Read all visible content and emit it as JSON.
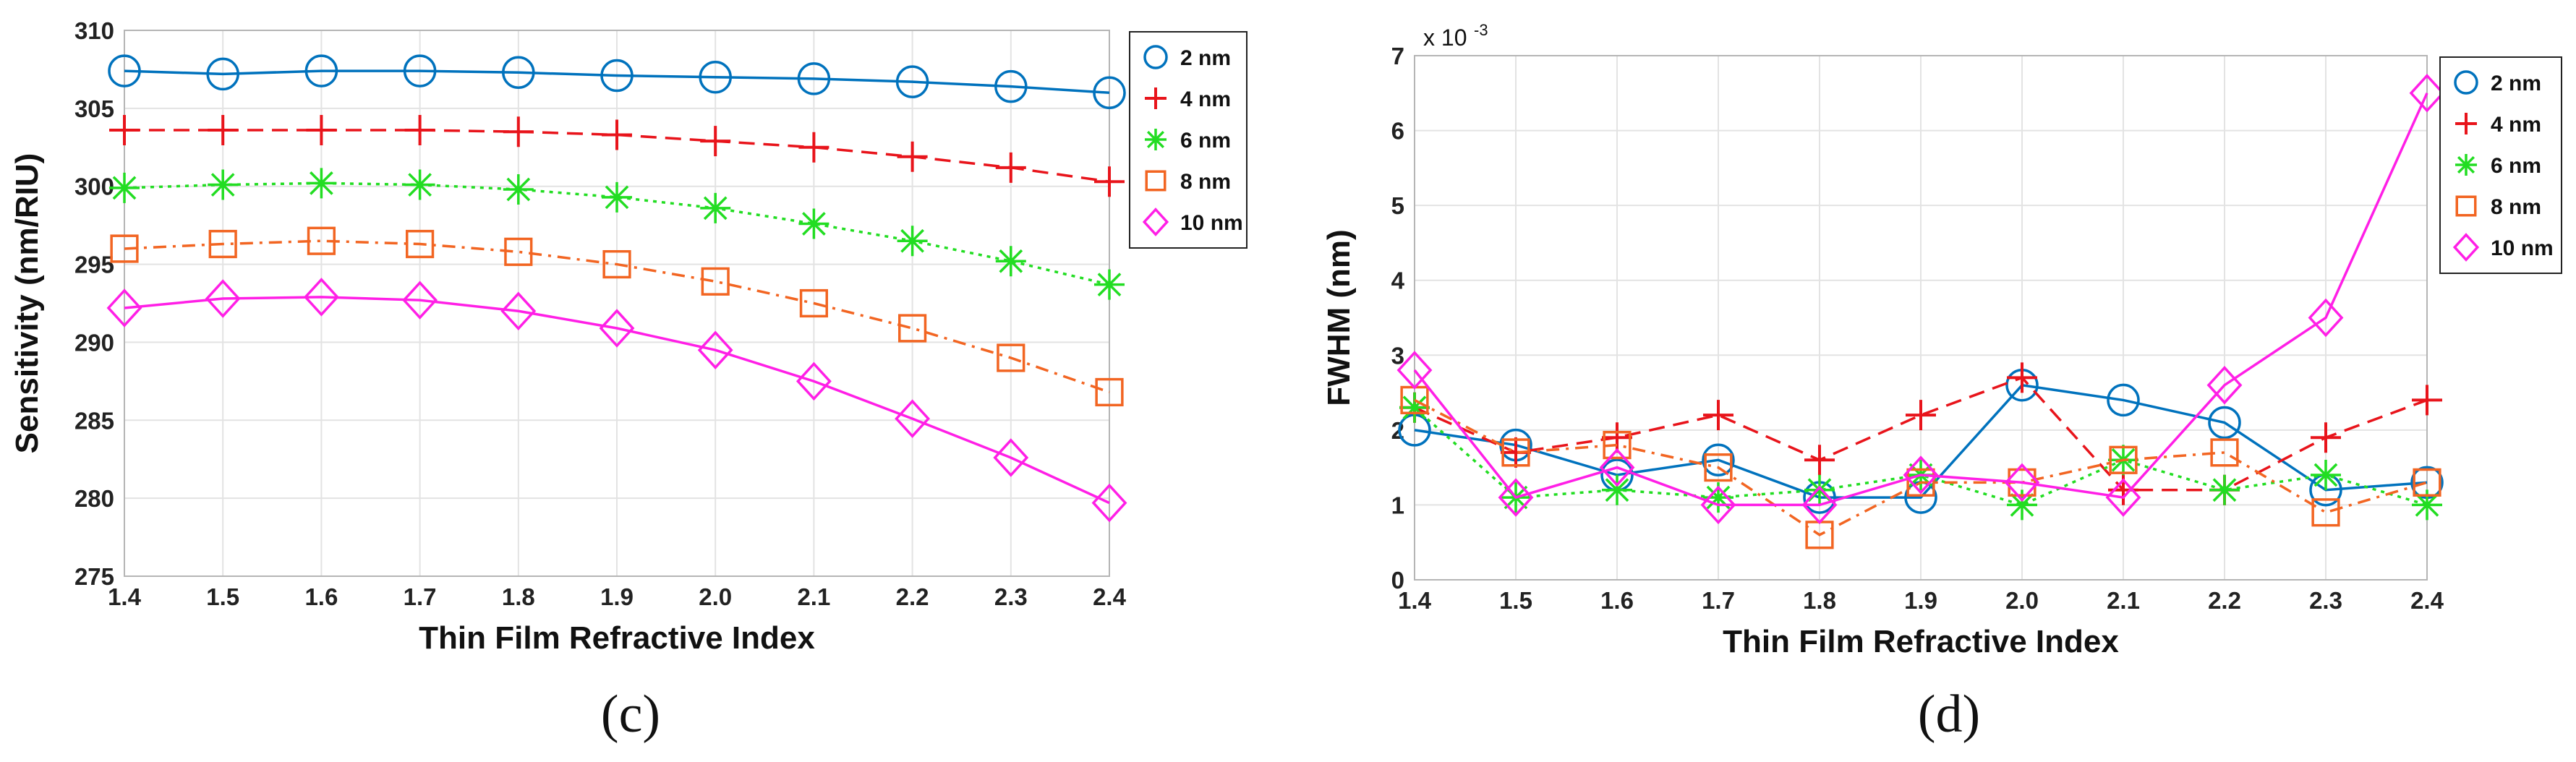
{
  "chart_data": [
    {
      "type": "line",
      "panel_label": "(c)",
      "title": "",
      "xlabel": "Thin Film Refractive Index",
      "ylabel": "Sensitivity (nm/RIU)",
      "xlim": [
        1.4,
        2.4
      ],
      "ylim": [
        275,
        310
      ],
      "xticks": [
        "1.4",
        "1.5",
        "1.6",
        "1.7",
        "1.8",
        "1.9",
        "2.0",
        "2.1",
        "2.2",
        "2.3",
        "2.4"
      ],
      "yticks": [
        "275",
        "280",
        "285",
        "290",
        "295",
        "300",
        "305",
        "310"
      ],
      "grid": true,
      "legend_position": "top-right-outside",
      "x": [
        1.4,
        1.5,
        1.6,
        1.7,
        1.8,
        1.9,
        2.0,
        2.1,
        2.2,
        2.3,
        2.4
      ],
      "series": [
        {
          "name": "2 nm",
          "color": "#0072BD",
          "marker": "circle",
          "line": "solid",
          "values": [
            307.4,
            307.2,
            307.4,
            307.4,
            307.3,
            307.1,
            307.0,
            306.9,
            306.7,
            306.4,
            306.0
          ]
        },
        {
          "name": "4 nm",
          "color": "#E8141B",
          "marker": "plus",
          "line": "dashed",
          "values": [
            303.6,
            303.6,
            303.6,
            303.6,
            303.5,
            303.3,
            302.9,
            302.5,
            301.9,
            301.2,
            300.3
          ]
        },
        {
          "name": "6 nm",
          "color": "#22DD22",
          "marker": "asterisk",
          "line": "dotted",
          "values": [
            299.9,
            300.1,
            300.2,
            300.1,
            299.8,
            299.3,
            298.6,
            297.6,
            296.5,
            295.2,
            293.7
          ]
        },
        {
          "name": "8 nm",
          "color": "#F26522",
          "marker": "square",
          "line": "dashdot",
          "values": [
            296.0,
            296.3,
            296.5,
            296.3,
            295.8,
            295.0,
            293.9,
            292.5,
            290.9,
            289.0,
            286.8
          ]
        },
        {
          "name": "10 nm",
          "color": "#FF1FE6",
          "marker": "diamond",
          "line": "solid",
          "values": [
            292.2,
            292.8,
            292.9,
            292.7,
            292.0,
            290.9,
            289.5,
            287.5,
            285.1,
            282.6,
            279.7
          ]
        }
      ]
    },
    {
      "type": "line",
      "panel_label": "(d)",
      "title": "",
      "xlabel": "Thin Film Refractive Index",
      "ylabel": "FWHM (nm)",
      "multiplier": "x 10",
      "multiplier_exp": "-3",
      "xlim": [
        1.4,
        2.4
      ],
      "ylim": [
        0,
        7
      ],
      "xticks": [
        "1.4",
        "1.5",
        "1.6",
        "1.7",
        "1.8",
        "1.9",
        "2.0",
        "2.1",
        "2.2",
        "2.3",
        "2.4"
      ],
      "yticks": [
        "0",
        "1",
        "2",
        "3",
        "4",
        "5",
        "6",
        "7"
      ],
      "grid": true,
      "legend_position": "top-right-outside",
      "x": [
        1.4,
        1.5,
        1.6,
        1.7,
        1.8,
        1.9,
        2.0,
        2.1,
        2.2,
        2.3,
        2.4
      ],
      "series": [
        {
          "name": "2 nm",
          "color": "#0072BD",
          "marker": "circle",
          "line": "solid",
          "values": [
            2.0,
            1.8,
            1.4,
            1.6,
            1.1,
            1.1,
            2.6,
            2.4,
            2.1,
            1.2,
            1.3
          ]
        },
        {
          "name": "4 nm",
          "color": "#E8141B",
          "marker": "plus",
          "line": "dashed",
          "values": [
            2.3,
            1.7,
            1.9,
            2.2,
            1.6,
            2.2,
            2.7,
            1.2,
            1.2,
            1.9,
            2.4
          ]
        },
        {
          "name": "6 nm",
          "color": "#22DD22",
          "marker": "asterisk",
          "line": "dotted",
          "values": [
            2.3,
            1.1,
            1.2,
            1.1,
            1.2,
            1.4,
            1.0,
            1.6,
            1.2,
            1.4,
            1.0
          ]
        },
        {
          "name": "8 nm",
          "color": "#F26522",
          "marker": "square",
          "line": "dashdot",
          "values": [
            2.4,
            1.7,
            1.8,
            1.5,
            0.6,
            1.3,
            1.3,
            1.6,
            1.7,
            0.9,
            1.3
          ]
        },
        {
          "name": "10 nm",
          "color": "#FF1FE6",
          "marker": "diamond",
          "line": "solid",
          "values": [
            2.8,
            1.1,
            1.5,
            1.0,
            1.0,
            1.4,
            1.3,
            1.1,
            2.6,
            3.5,
            6.5
          ]
        }
      ]
    }
  ]
}
